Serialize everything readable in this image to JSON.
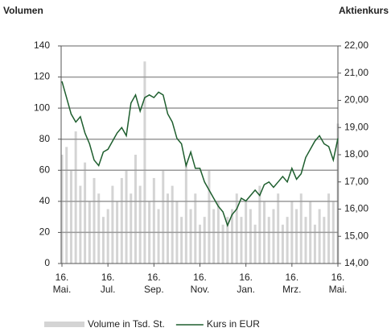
{
  "chart_data": {
    "type": "bar",
    "y_label": "Volumen",
    "y2_label": "Aktienkurs",
    "categories": [
      "16. Mai.",
      null,
      null,
      null,
      null,
      null,
      null,
      null,
      null,
      null,
      "16. Jul.",
      null,
      null,
      null,
      null,
      null,
      null,
      null,
      null,
      null,
      "16. Sep.",
      null,
      null,
      null,
      null,
      null,
      null,
      null,
      null,
      null,
      "16. Nov.",
      null,
      null,
      null,
      null,
      null,
      null,
      null,
      null,
      null,
      "16. Jan.",
      null,
      null,
      null,
      null,
      null,
      null,
      null,
      null,
      null,
      "16. Mrz.",
      null,
      null,
      null,
      null,
      null,
      null,
      null,
      null,
      null,
      "16. Mai."
    ],
    "series": [
      {
        "name": "Volume in Tsd. St.",
        "type": "bar",
        "color": "#d4d4d4",
        "values": [
          70,
          75,
          60,
          85,
          50,
          65,
          40,
          55,
          45,
          30,
          35,
          50,
          40,
          55,
          60,
          45,
          70,
          50,
          130,
          40,
          55,
          35,
          60,
          45,
          50,
          40,
          30,
          65,
          35,
          45,
          25,
          30,
          60,
          35,
          40,
          25,
          30,
          35,
          45,
          30,
          40,
          35,
          25,
          50,
          40,
          30,
          35,
          45,
          25,
          30,
          40,
          35,
          45,
          30,
          40,
          25,
          35,
          30,
          45,
          40,
          90
        ]
      },
      {
        "name": "Kurs in EUR",
        "type": "line",
        "axis": "y2",
        "color": "#1e5e2e",
        "values": [
          20.7,
          20.1,
          19.5,
          19.2,
          19.4,
          18.8,
          18.4,
          17.8,
          17.6,
          18.1,
          18.2,
          18.5,
          18.8,
          19.0,
          18.7,
          19.9,
          20.2,
          19.6,
          20.1,
          20.2,
          20.1,
          20.3,
          20.2,
          19.5,
          19.2,
          18.6,
          18.4,
          17.6,
          18.1,
          17.5,
          17.5,
          17.0,
          16.7,
          16.4,
          16.1,
          15.9,
          15.4,
          15.8,
          16.0,
          16.4,
          16.3,
          16.5,
          16.7,
          16.5,
          16.9,
          17.0,
          16.8,
          17.0,
          17.2,
          17.0,
          17.5,
          17.1,
          17.3,
          17.9,
          18.2,
          18.5,
          18.7,
          18.4,
          18.3,
          17.8,
          18.6
        ]
      }
    ],
    "ylim": [
      0,
      140
    ],
    "yticks": [
      0,
      20,
      40,
      60,
      80,
      100,
      120,
      140
    ],
    "y2lim": [
      14,
      22
    ],
    "y2ticks": [
      {
        "value": 14,
        "label": "14,00"
      },
      {
        "value": 15,
        "label": "15,00"
      },
      {
        "value": 16,
        "label": "16,00"
      },
      {
        "value": 17,
        "label": "17,00"
      },
      {
        "value": 18,
        "label": "18,00"
      },
      {
        "value": 19,
        "label": "19,00"
      },
      {
        "value": 20,
        "label": "20,00"
      },
      {
        "value": 21,
        "label": "21,00"
      },
      {
        "value": 22,
        "label": "22,00"
      }
    ],
    "grid": true,
    "legend": "bottom"
  }
}
